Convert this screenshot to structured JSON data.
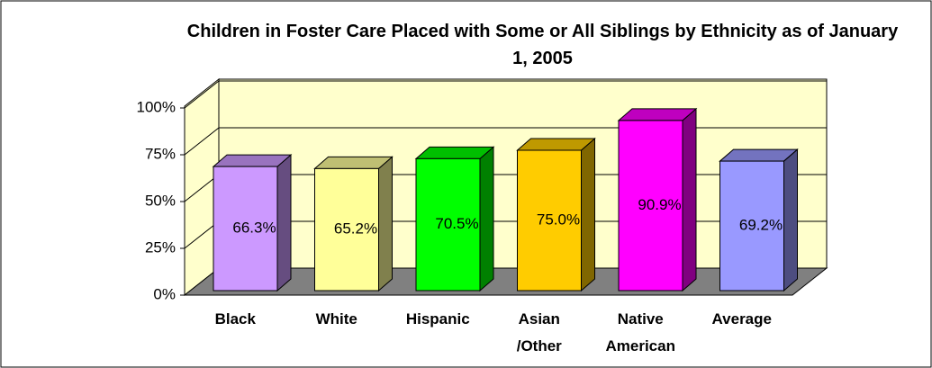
{
  "chart_data": {
    "type": "bar3d",
    "title": "Children in Foster Care Placed with Some or All Siblings by Ethnicity as of January 1, 2005",
    "categories": [
      "Black",
      "White",
      "Hispanic",
      "Asian /Other",
      "Native American",
      "Average"
    ],
    "values": [
      66.3,
      65.2,
      70.5,
      75.0,
      90.9,
      69.2
    ],
    "value_labels": [
      "66.3%",
      "65.2%",
      "70.5%",
      "75.0%",
      "90.9%",
      "69.2%"
    ],
    "colors": [
      "#cc99ff",
      "#ffff99",
      "#00ff00",
      "#ffcc00",
      "#ff00ff",
      "#9999ff"
    ],
    "ylim": [
      0,
      100
    ],
    "yticks": [
      {
        "value": 0,
        "label": "0%"
      },
      {
        "value": 25,
        "label": "25%"
      },
      {
        "value": 50,
        "label": "50%"
      },
      {
        "value": 75,
        "label": "75%"
      },
      {
        "value": 100,
        "label": "100%"
      }
    ],
    "grid": true
  }
}
